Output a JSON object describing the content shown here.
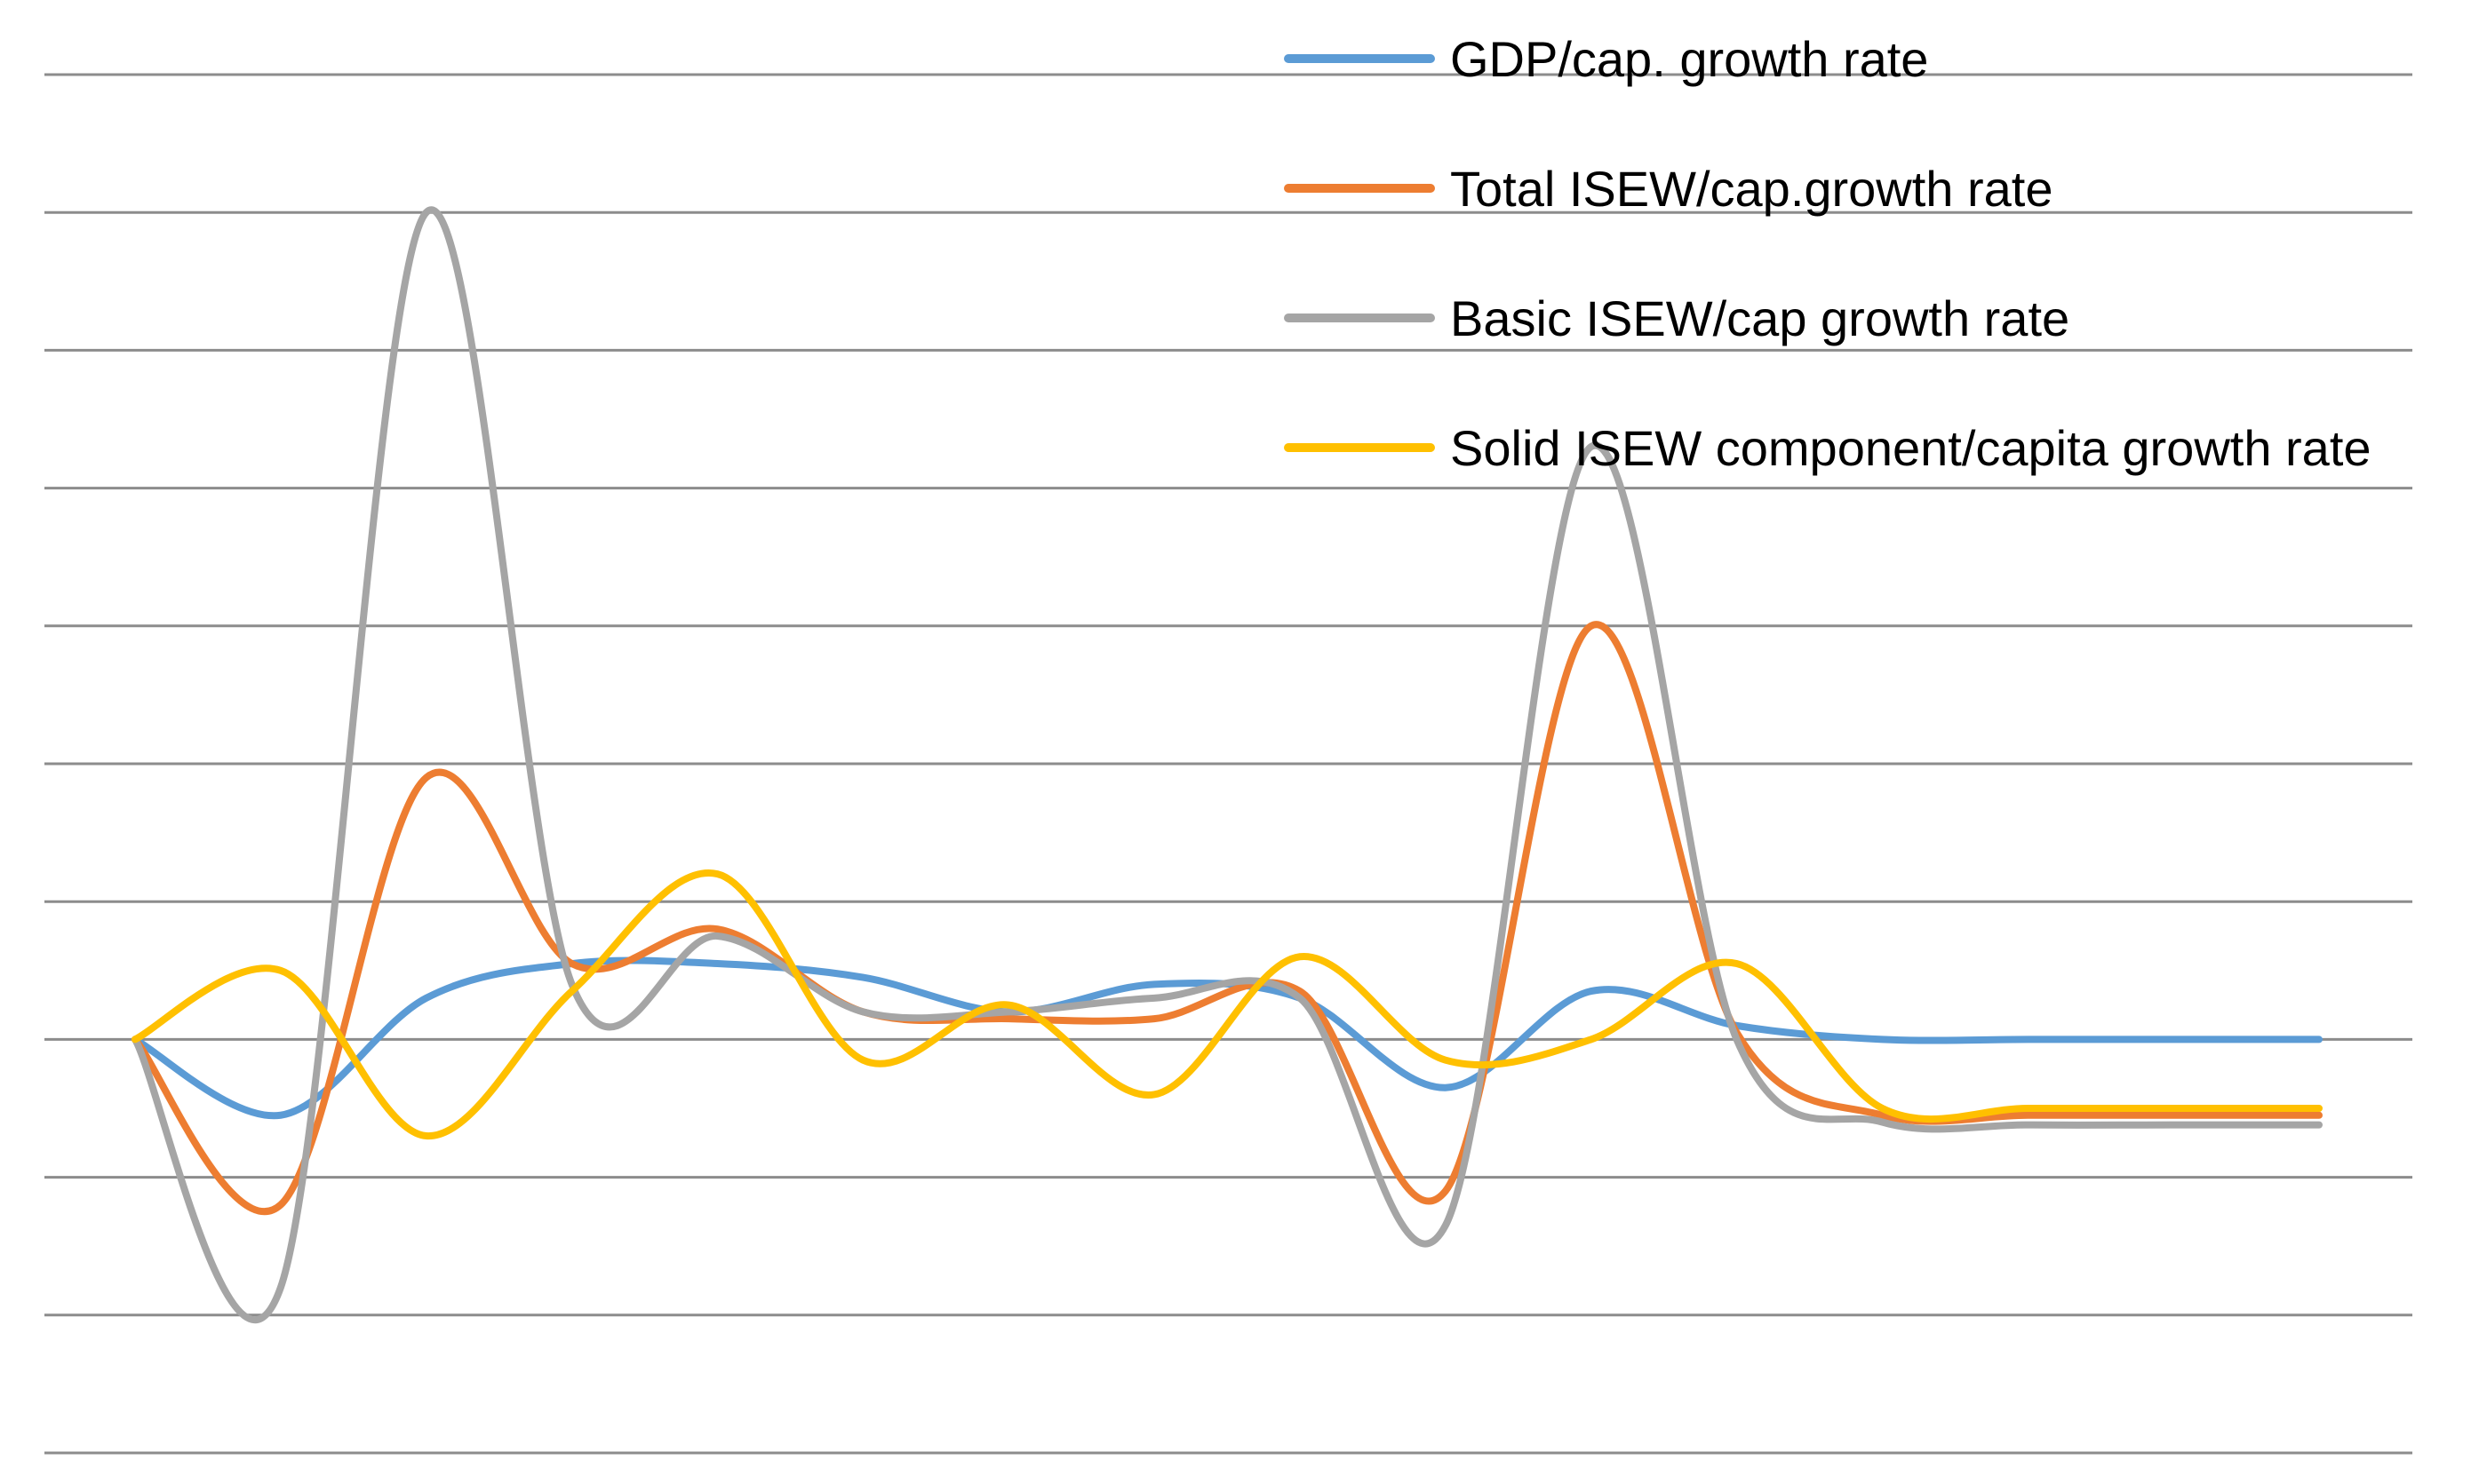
{
  "chart_data": {
    "type": "line",
    "title": "",
    "xlabel": "",
    "ylabel": "",
    "grid": true,
    "ylim": [
      -3,
      7
    ],
    "gridlines": [
      -3,
      -2,
      -1,
      0,
      1,
      2,
      3,
      4,
      5,
      6,
      7
    ],
    "legend_position": "top-right",
    "x": [
      1,
      2,
      3,
      4,
      5,
      6,
      7,
      8,
      9,
      10,
      11,
      12,
      13,
      14,
      15,
      16
    ],
    "series": [
      {
        "name": "GDP/cap. growth rate",
        "color": "#5B9BD5",
        "values": [
          0.0,
          -0.55,
          0.3,
          0.55,
          0.55,
          0.45,
          0.2,
          0.4,
          0.3,
          -0.35,
          0.35,
          0.1,
          0.0,
          0.0,
          0.0,
          0.0
        ]
      },
      {
        "name": "Total ISEW/cap.growth rate",
        "color": "#ED7D31",
        "values": [
          0.0,
          -1.2,
          1.9,
          0.55,
          0.8,
          0.2,
          0.15,
          0.15,
          0.35,
          -1.1,
          3.0,
          0.05,
          -0.55,
          -0.55,
          -0.55,
          -0.55
        ]
      },
      {
        "name": "Basic ISEW/cap growth rate",
        "color": "#A5A5A5",
        "values": [
          0.0,
          -1.8,
          6.0,
          0.4,
          0.75,
          0.2,
          0.2,
          0.3,
          0.3,
          -1.35,
          4.3,
          0.0,
          -0.6,
          -0.62,
          -0.62,
          -0.62
        ]
      },
      {
        "name": "Solid ISEW component/capita growth rate",
        "color": "#FFC000",
        "values": [
          0.0,
          0.5,
          -0.7,
          0.35,
          1.2,
          -0.15,
          0.25,
          -0.4,
          0.6,
          -0.15,
          0.0,
          0.55,
          -0.5,
          -0.5,
          -0.5,
          -0.5
        ]
      }
    ]
  }
}
